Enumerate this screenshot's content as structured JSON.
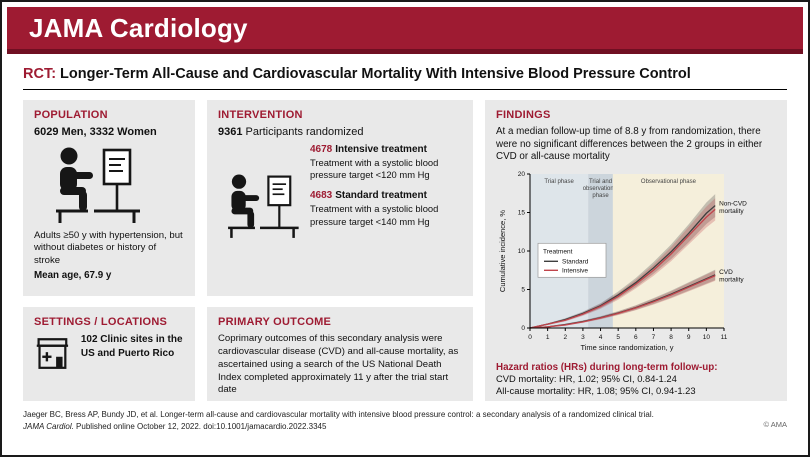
{
  "banner": {
    "title": "JAMA Cardiology"
  },
  "headline": {
    "tag": "RCT:",
    "title": "Longer-Term All-Cause and Cardiovascular Mortality With Intensive Blood Pressure Control"
  },
  "population": {
    "header": "POPULATION",
    "stat": "6029 Men, 3332 Women",
    "description": "Adults ≥50 y with hypertension, but without diabetes or history of stroke",
    "mean_age": "Mean age, 67.9 y",
    "icon": "patient-consult-icon"
  },
  "intervention": {
    "header": "INTERVENTION",
    "stat_number": "9361",
    "stat_label": "Participants randomized",
    "icon": "patient-consult-icon",
    "groups": [
      {
        "n": "4678",
        "name": "Intensive treatment",
        "detail": "Treatment with a systolic blood pressure target <120 mm Hg"
      },
      {
        "n": "4683",
        "name": "Standard treatment",
        "detail": "Treatment with a systolic blood pressure target <140 mm Hg"
      }
    ]
  },
  "settings": {
    "header": "SETTINGS / LOCATIONS",
    "text": "102 Clinic sites in the US and Puerto Rico",
    "icon": "clinic-icon"
  },
  "primary_outcome": {
    "header": "PRIMARY OUTCOME",
    "text": "Coprimary outcomes of this secondary analysis were cardiovascular disease (CVD) and all-cause mortality, as ascertained using a search of the US National Death Index completed approximately 11 y after the trial start date"
  },
  "findings": {
    "header": "FINDINGS",
    "summary": "At a median follow-up time of 8.8 y from randomization, there were no significant differences between the 2 groups in either CVD or all-cause mortality",
    "hazard_title": "Hazard ratios (HRs) during long-term follow-up:",
    "hazard_lines": [
      "CVD mortality: HR, 1.02; 95% CI, 0.84-1.24",
      "All-cause mortality: HR, 1.08; 95% CI, 0.94-1.23"
    ]
  },
  "chart_data": {
    "type": "line",
    "title": "",
    "xlabel": "Time since randomization, y",
    "ylabel": "Cumulative incidence, %",
    "xlim": [
      0,
      11
    ],
    "ylim": [
      0,
      20
    ],
    "xticks": [
      0,
      1,
      2,
      3,
      4,
      5,
      6,
      7,
      8,
      9,
      10,
      11
    ],
    "yticks": [
      0,
      5,
      10,
      15,
      20
    ],
    "grid": false,
    "phases": [
      {
        "label": "Trial phase",
        "x0": 0,
        "x1": 3.3,
        "color": "#dee5ea"
      },
      {
        "label": "Trial and observational phase",
        "x0": 3.3,
        "x1": 4.7,
        "color": "#ccd5dc"
      },
      {
        "label": "Observational phase",
        "x0": 4.7,
        "x1": 11,
        "color": "#f5efdb"
      }
    ],
    "legend": {
      "title": "Treatment",
      "position": "mid-left",
      "entries": [
        {
          "label": "Standard",
          "color": "#3f3f3f"
        },
        {
          "label": "Intensive",
          "color": "#c0444b"
        }
      ]
    },
    "x": [
      0,
      1,
      2,
      3,
      4,
      5,
      6,
      7,
      8,
      9,
      10,
      10.5
    ],
    "series": [
      {
        "name": "Non-CVD mortality - Standard",
        "color": "#3f3f3f",
        "values": [
          0,
          0.5,
          1.1,
          1.9,
          2.9,
          4.3,
          5.9,
          7.8,
          9.9,
          12.3,
          14.9,
          15.9
        ]
      },
      {
        "name": "Non-CVD mortality - Intensive",
        "color": "#c0444b",
        "values": [
          0,
          0.5,
          1.0,
          1.8,
          2.8,
          4.1,
          5.7,
          7.5,
          9.6,
          12.0,
          14.4,
          15.4
        ]
      },
      {
        "name": "CVD mortality - Standard",
        "color": "#3f3f3f",
        "values": [
          0,
          0.15,
          0.45,
          0.85,
          1.35,
          1.95,
          2.65,
          3.5,
          4.4,
          5.4,
          6.4,
          6.9
        ]
      },
      {
        "name": "CVD mortality - Intensive",
        "color": "#c0444b",
        "values": [
          0,
          0.15,
          0.4,
          0.8,
          1.3,
          1.9,
          2.6,
          3.4,
          4.3,
          5.3,
          6.3,
          6.8
        ]
      }
    ],
    "annotations": [
      {
        "text": "Non-CVD mortality",
        "x": 10.55,
        "y": 15.9
      },
      {
        "text": "CVD mortality",
        "x": 10.55,
        "y": 7.0
      }
    ]
  },
  "footer": {
    "line1": "Jaeger BC, Bress AP, Bundy JD, et al. Longer-term all-cause and cardiovascular mortality with intensive blood pressure control: a secondary analysis of a randomized clinical trial.",
    "journal": "JAMA Cardiol.",
    "line2": " Published online October 12, 2022. doi:10.1001/jamacardio.2022.3345",
    "copyright": "© AMA"
  },
  "colors": {
    "jama_red": "#9e1b32",
    "banner_strip": "#700f22",
    "panel_bg": "#e9e9e9",
    "standard_line": "#3f3f3f",
    "intensive_line": "#c0444b"
  }
}
